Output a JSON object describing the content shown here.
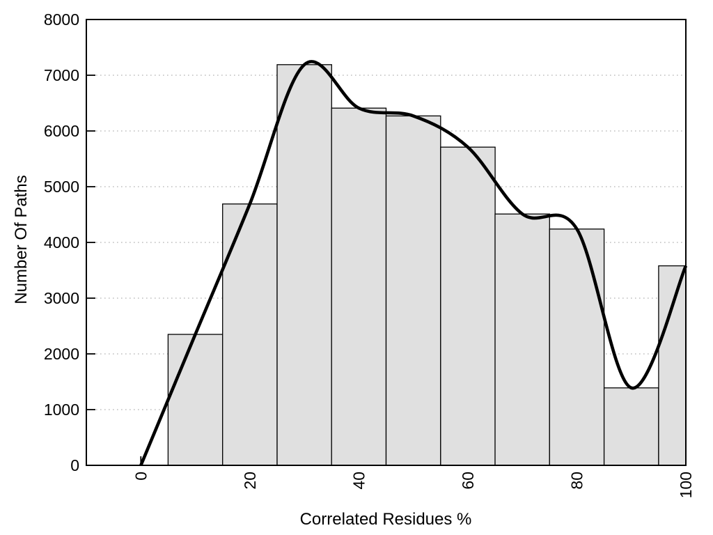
{
  "chart_data": {
    "type": "bar",
    "subtype": "histogram-with-spline-overlay",
    "title": "",
    "xlabel": "Correlated Residues %",
    "ylabel": "Number Of Paths",
    "xlim": [
      -10,
      100
    ],
    "ylim": [
      0,
      8000
    ],
    "x_ticks": [
      0,
      20,
      40,
      60,
      80,
      100
    ],
    "y_ticks": [
      0,
      1000,
      2000,
      3000,
      4000,
      5000,
      6000,
      7000,
      8000
    ],
    "x_tick_labels": [
      "0",
      "20",
      "40",
      "60",
      "80",
      "100"
    ],
    "y_tick_labels": [
      "0",
      "1000",
      "2000",
      "3000",
      "4000",
      "5000",
      "6000",
      "7000",
      "8000"
    ],
    "grid": "dotted horizontal gridlines at each y tick",
    "legend_position": "none",
    "bars": {
      "bin_start": 5,
      "bin_width": 10,
      "clip_right_at": 100,
      "bin_edges": [
        5,
        15,
        25,
        35,
        45,
        55,
        65,
        75,
        85,
        95,
        100
      ],
      "values": [
        2350,
        4690,
        7190,
        6410,
        6270,
        5710,
        4510,
        4240,
        1390,
        3580
      ]
    },
    "curve": {
      "name": "smooth spline through origin and bin midpoints",
      "x": [
        0,
        10,
        20,
        30,
        40,
        50,
        60,
        70,
        80,
        90,
        100
      ],
      "y": [
        0,
        2350,
        4690,
        7190,
        6410,
        6270,
        5710,
        4510,
        4240,
        1390,
        3580
      ]
    },
    "colors": {
      "background": "#ffffff",
      "bar_fill": "#e0e0e0",
      "bar_stroke": "#000000",
      "curve_stroke": "#000000",
      "grid_stroke": "#bdbdbd",
      "border_stroke": "#000000",
      "text": "#000000"
    }
  }
}
